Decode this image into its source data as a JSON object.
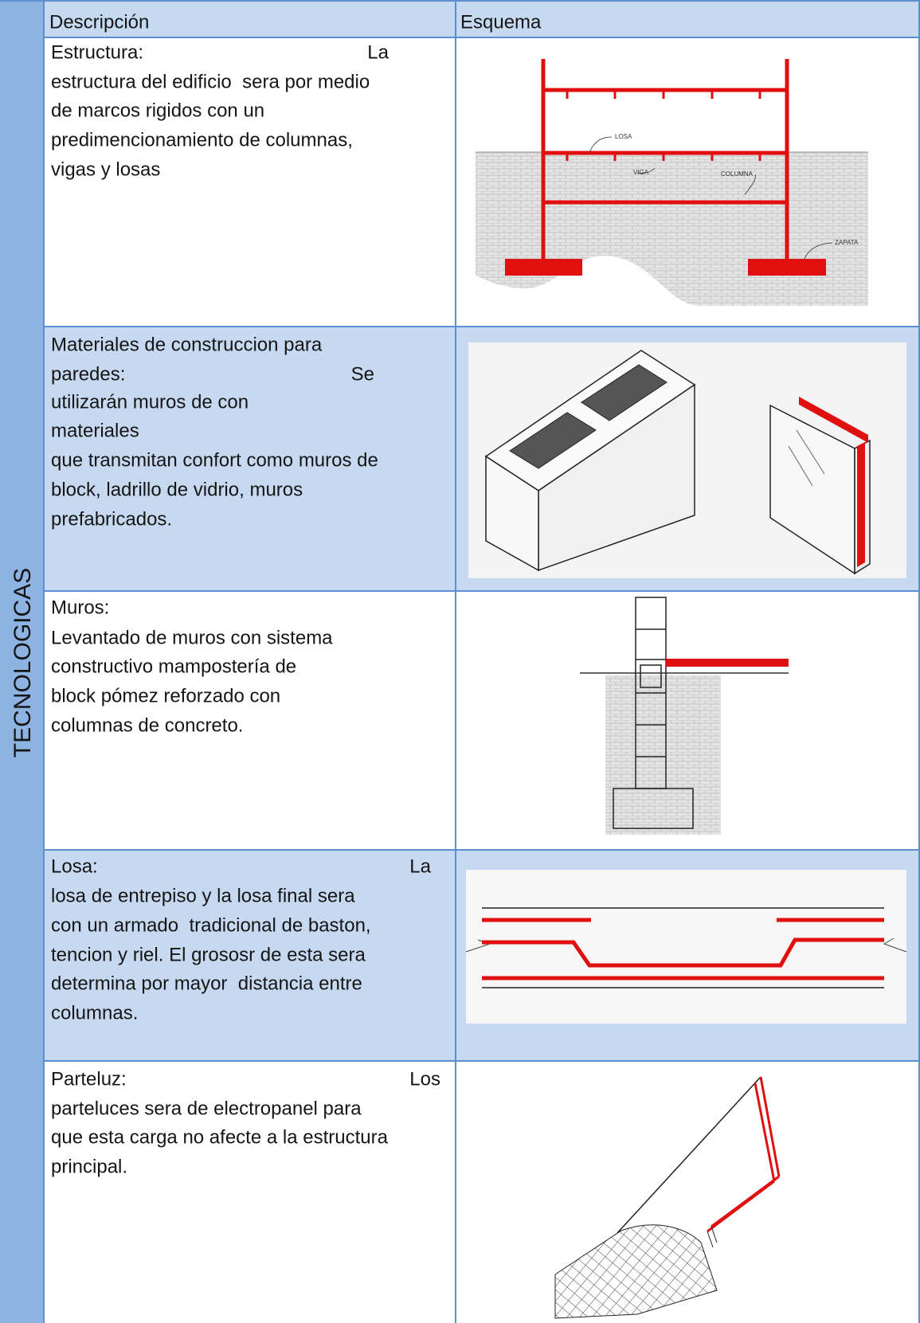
{
  "header": {
    "side_label": "TECNOLOGICAS",
    "columns": [
      "Descripción",
      "Esquema"
    ]
  },
  "rows": [
    {
      "description": [
        "Estructura:",
        "La",
        "estructura del edificio  sera por medio",
        "de marcos rigidos con un",
        "predimencionamiento de columnas,",
        "vigas y losas"
      ],
      "figure_labels": [
        "LOSA",
        "VIGA",
        "COLUMNA",
        "ZAPATA"
      ]
    },
    {
      "description": [
        "Materiales de construccion para",
        "paredes:",
        "Se",
        "utilizarán muros de con",
        "materiales",
        "que transmitan confort como muros de",
        "block, ladrillo de vidrio, muros",
        "prefabricados."
      ]
    },
    {
      "description": [
        "Muros:",
        "Levantado de muros con sistema",
        "constructivo mampostería de",
        "block pómez reforzado con",
        "columnas de concreto."
      ]
    },
    {
      "description": [
        "Losa:",
        "La",
        "losa de entrepiso y la losa final sera",
        "con un armado  tradicional de baston,",
        "tencion y riel. El grososr de esta sera",
        "determina por mayor  distancia entre",
        "columnas."
      ]
    },
    {
      "description": [
        "Parteluz:",
        "Los",
        "parteluces sera de electropanel para",
        "que esta carga no afecte a la estructura",
        "principal."
      ]
    }
  ]
}
